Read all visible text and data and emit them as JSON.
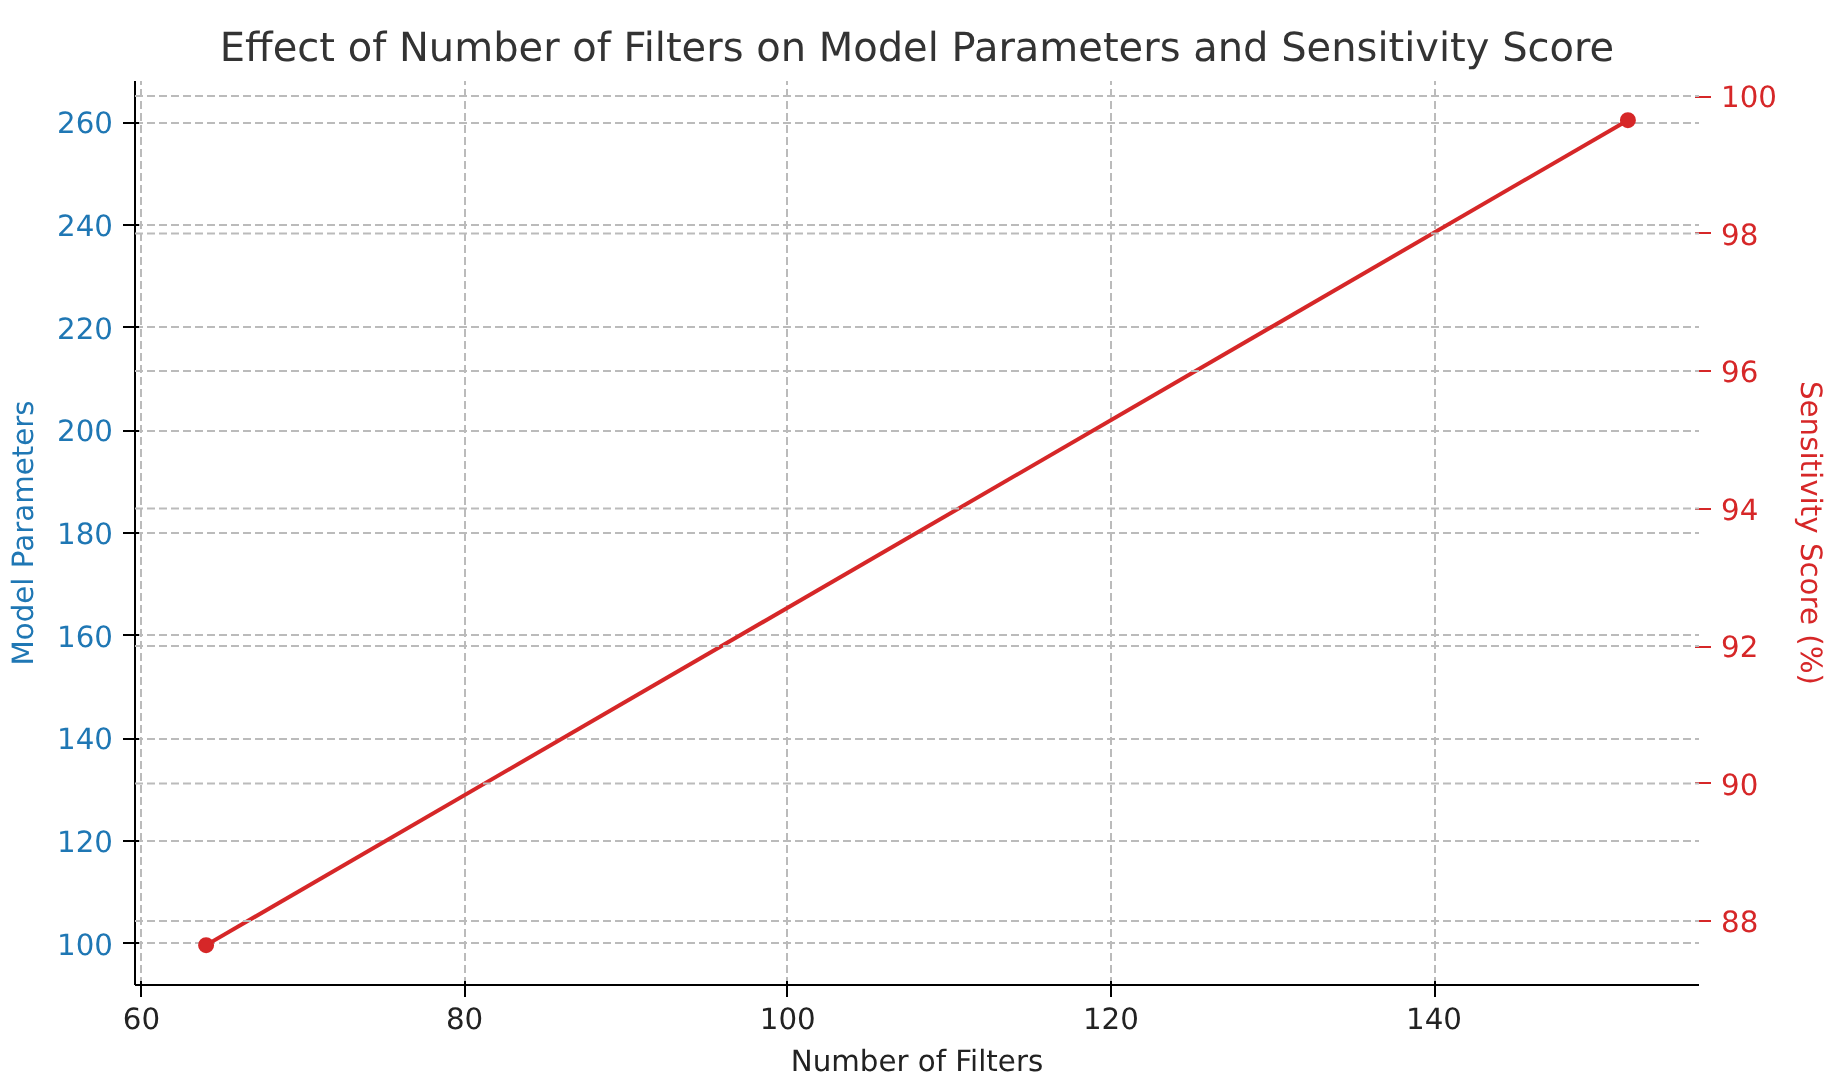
{
  "chart_data": {
    "type": "line",
    "title": "Effect of Number of Filters on Model Parameters and Sensitivity Score",
    "xlabel": "Number of Filters",
    "ylabel": "Model Parameters",
    "y2label": "Sensitivity Score (%)",
    "x": [
      64,
      152
    ],
    "series": [
      {
        "color": "#d62728",
        "values": [
          87.65,
          99.65
        ],
        "axis": "y2"
      }
    ],
    "xlim": [
      59.6,
      156.4
    ],
    "xticks": [
      60,
      80,
      100,
      120,
      140
    ],
    "ylim": [
      92,
      268
    ],
    "yticks": [
      100,
      120,
      140,
      160,
      180,
      200,
      220,
      240,
      260
    ],
    "y2lim": [
      87.07,
      100.22
    ],
    "y2ticks": [
      88,
      90,
      92,
      94,
      96,
      98,
      100
    ],
    "grid": true,
    "marker": "circle",
    "line_style": "solid"
  }
}
